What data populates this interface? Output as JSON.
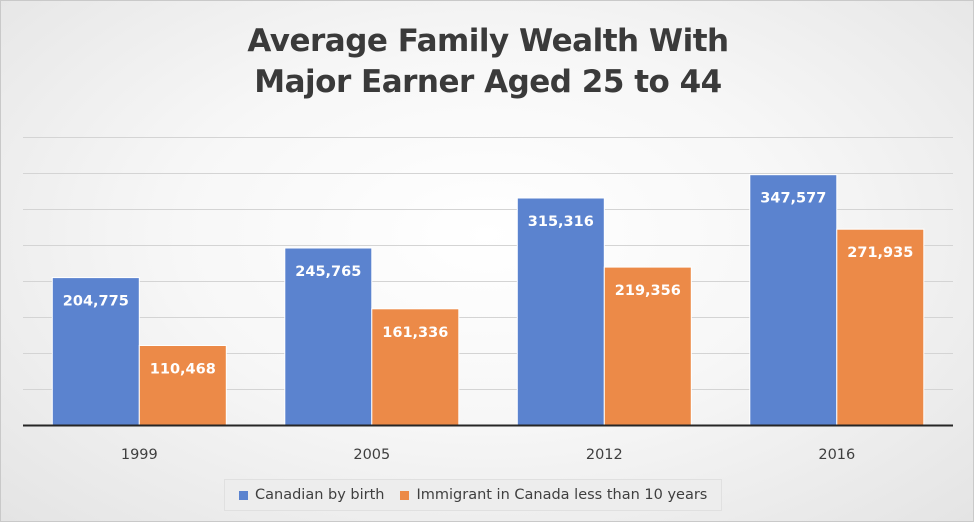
{
  "chart_data": {
    "type": "bar",
    "title_lines": [
      "Average Family Wealth With",
      "Major Earner Aged 25 to 44"
    ],
    "categories": [
      "1999",
      "2005",
      "2012",
      "2016"
    ],
    "series": [
      {
        "name": "Canadian by birth",
        "color": "#5b83cf",
        "values": [
          204775,
          245765,
          315316,
          347577
        ],
        "labels": [
          "204,775",
          "245,765",
          "315,316",
          "347,577"
        ]
      },
      {
        "name": "Immigrant in Canada less than 10 years",
        "color": "#ec8a48",
        "values": [
          110468,
          161336,
          219356,
          271935
        ],
        "labels": [
          "110,468",
          "161,336",
          "219,356",
          "271,935"
        ]
      }
    ],
    "ylim": [
      0,
      400000
    ],
    "y_gridlines": true,
    "legend_position": "bottom"
  }
}
